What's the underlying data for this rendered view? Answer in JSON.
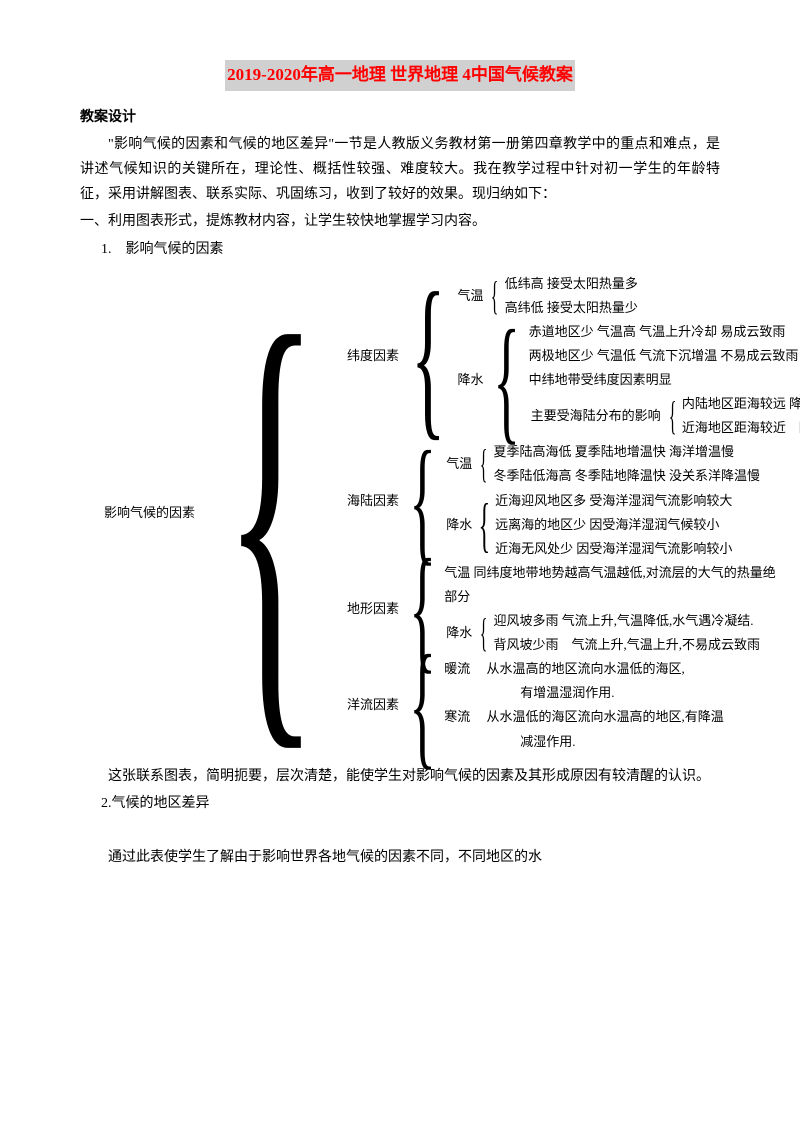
{
  "title": "2019-2020年高一地理 世界地理 4中国气候教案",
  "section": "教案设计",
  "para1": "\"影响气候的因素和气候的地区差异\"一节是人教版义务教材第一册第四章教学中的重点和难点，是讲述气候知识的关键所在，理论性、概括性较强、难度较大。我在教学过程中针对初一学生的年龄特征，采用讲解图表、联系实际、巩固练习，收到了较好的效果。现归纳如下：",
  "line1": "一、利用图表形式，提炼教材内容，让学生较快地掌握学习内容。",
  "item1": "1.　影响气候的因素",
  "root": "影响气候的因素",
  "f1": {
    "name": "纬度因素",
    "qw": {
      "name": "气温",
      "a": "低纬高 接受太阳热量多",
      "b": "高纬低 接受太阳热量少"
    },
    "js": {
      "name": "降水",
      "a": "赤道地区少 气温高 气温上升冷却 易成云致雨",
      "b": "两极地区少 气温低 气流下沉增温 不易成云致雨",
      "c": "中纬地带受纬度因素明显",
      "d": {
        "name": "主要受海陆分布的影响",
        "x": "内陆地区距海较远 降水少",
        "y": "近海地区距海较近　降水多"
      }
    }
  },
  "f2": {
    "name": "海陆因素",
    "qw": {
      "name": "气温",
      "a": "夏季陆高海低 夏季陆地增温快 海洋增温慢",
      "b": "冬季陆低海高 冬季陆地降温快 没关系洋降温慢"
    },
    "js": {
      "name": "降水",
      "a": "近海迎风地区多 受海洋湿润气流影响较大",
      "b": "远离海的地区少 因受海洋湿润气候较小",
      "c": "近海无风处少 因受海洋湿润气流影响较小"
    }
  },
  "f3": {
    "name": "地形因素",
    "qw": "气温 同纬度地带地势越高气温越低,对流层的大气的热量绝",
    "bf": "部分",
    "js": {
      "name": "降水",
      "a": "迎风坡多雨 气流上升,气温降低,水气遇冷凝结.",
      "b": "背风坡少雨　气流上升,气温上升,不易成云致雨"
    }
  },
  "f4": {
    "name": "洋流因素",
    "a1": "暖流　 从水温高的地区流向水温低的海区,",
    "a2": "有增温湿润作用.",
    "b1": "寒流　 从水温低的海区流向水温高的地区,有降温",
    "b2": "减湿作用."
  },
  "para2": "这张联系图表，简明扼要，层次清楚，能使学生对影响气候的因素及其形成原因有较清醒的认识。",
  "item2": "2.气候的地区差异",
  "para3": "通过此表使学生了解由于影响世界各地气候的因素不同，不同地区的水"
}
